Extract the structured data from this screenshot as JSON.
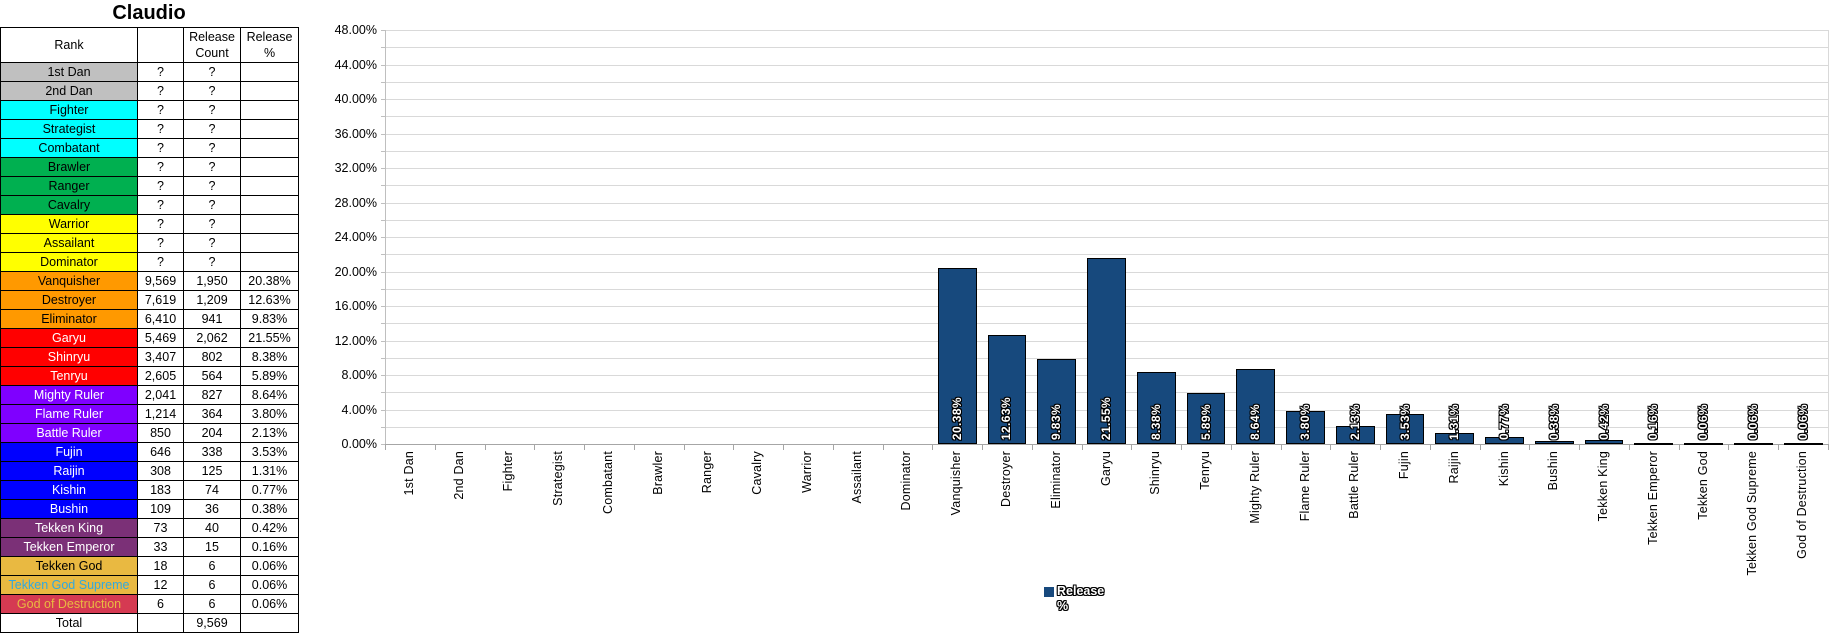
{
  "title": "Claudio",
  "table": {
    "columns": {
      "rank": "Rank",
      "count": "",
      "release_count": "Release Count",
      "release_pct": "Release %"
    },
    "rows": [
      {
        "name": "1st Dan",
        "bg": "#C0C0C0",
        "fg": "#000000",
        "count": "?",
        "release_count": "?",
        "release_pct": ""
      },
      {
        "name": "2nd Dan",
        "bg": "#C0C0C0",
        "fg": "#000000",
        "count": "?",
        "release_count": "?",
        "release_pct": ""
      },
      {
        "name": "Fighter",
        "bg": "#00FFFF",
        "fg": "#000000",
        "count": "?",
        "release_count": "?",
        "release_pct": ""
      },
      {
        "name": "Strategist",
        "bg": "#00FFFF",
        "fg": "#000000",
        "count": "?",
        "release_count": "?",
        "release_pct": ""
      },
      {
        "name": "Combatant",
        "bg": "#00FFFF",
        "fg": "#000000",
        "count": "?",
        "release_count": "?",
        "release_pct": ""
      },
      {
        "name": "Brawler",
        "bg": "#00B050",
        "fg": "#000000",
        "count": "?",
        "release_count": "?",
        "release_pct": ""
      },
      {
        "name": "Ranger",
        "bg": "#00B050",
        "fg": "#000000",
        "count": "?",
        "release_count": "?",
        "release_pct": ""
      },
      {
        "name": "Cavalry",
        "bg": "#00B050",
        "fg": "#000000",
        "count": "?",
        "release_count": "?",
        "release_pct": ""
      },
      {
        "name": "Warrior",
        "bg": "#FFFF00",
        "fg": "#000000",
        "count": "?",
        "release_count": "?",
        "release_pct": ""
      },
      {
        "name": "Assailant",
        "bg": "#FFFF00",
        "fg": "#000000",
        "count": "?",
        "release_count": "?",
        "release_pct": ""
      },
      {
        "name": "Dominator",
        "bg": "#FFFF00",
        "fg": "#000000",
        "count": "?",
        "release_count": "?",
        "release_pct": ""
      },
      {
        "name": "Vanquisher",
        "bg": "#FF9900",
        "fg": "#000000",
        "count": "9,569",
        "release_count": "1,950",
        "release_pct": "20.38%"
      },
      {
        "name": "Destroyer",
        "bg": "#FF9900",
        "fg": "#000000",
        "count": "7,619",
        "release_count": "1,209",
        "release_pct": "12.63%"
      },
      {
        "name": "Eliminator",
        "bg": "#FF9900",
        "fg": "#000000",
        "count": "6,410",
        "release_count": "941",
        "release_pct": "9.83%"
      },
      {
        "name": "Garyu",
        "bg": "#FF0000",
        "fg": "#FFFFFF",
        "count": "5,469",
        "release_count": "2,062",
        "release_pct": "21.55%"
      },
      {
        "name": "Shinryu",
        "bg": "#FF0000",
        "fg": "#FFFFFF",
        "count": "3,407",
        "release_count": "802",
        "release_pct": "8.38%"
      },
      {
        "name": "Tenryu",
        "bg": "#FF0000",
        "fg": "#FFFFFF",
        "count": "2,605",
        "release_count": "564",
        "release_pct": "5.89%"
      },
      {
        "name": "Mighty Ruler",
        "bg": "#7F00FF",
        "fg": "#FFFFFF",
        "count": "2,041",
        "release_count": "827",
        "release_pct": "8.64%"
      },
      {
        "name": "Flame Ruler",
        "bg": "#7F00FF",
        "fg": "#FFFFFF",
        "count": "1,214",
        "release_count": "364",
        "release_pct": "3.80%"
      },
      {
        "name": "Battle Ruler",
        "bg": "#7F00FF",
        "fg": "#FFFFFF",
        "count": "850",
        "release_count": "204",
        "release_pct": "2.13%"
      },
      {
        "name": "Fujin",
        "bg": "#0000FF",
        "fg": "#FFFFFF",
        "count": "646",
        "release_count": "338",
        "release_pct": "3.53%"
      },
      {
        "name": "Raijin",
        "bg": "#0000FF",
        "fg": "#FFFFFF",
        "count": "308",
        "release_count": "125",
        "release_pct": "1.31%"
      },
      {
        "name": "Kishin",
        "bg": "#0000FF",
        "fg": "#FFFFFF",
        "count": "183",
        "release_count": "74",
        "release_pct": "0.77%"
      },
      {
        "name": "Bushin",
        "bg": "#0000FF",
        "fg": "#FFFFFF",
        "count": "109",
        "release_count": "36",
        "release_pct": "0.38%"
      },
      {
        "name": "Tekken King",
        "bg": "#7B3077",
        "fg": "#FFFFFF",
        "count": "73",
        "release_count": "40",
        "release_pct": "0.42%"
      },
      {
        "name": "Tekken Emperor",
        "bg": "#7B3077",
        "fg": "#FFFFFF",
        "count": "33",
        "release_count": "15",
        "release_pct": "0.16%"
      },
      {
        "name": "Tekken God",
        "bg": "#E9B941",
        "fg": "#000000",
        "count": "18",
        "release_count": "6",
        "release_pct": "0.06%"
      },
      {
        "name": "Tekken God Supreme",
        "bg": "#E9B941",
        "fg": "#31A8DF",
        "count": "12",
        "release_count": "6",
        "release_pct": "0.06%"
      },
      {
        "name": "God of Destruction",
        "bg": "#D53A52",
        "fg": "#E9B941",
        "count": "6",
        "release_count": "6",
        "release_pct": "0.06%"
      }
    ],
    "total": {
      "label": "Total",
      "count": "",
      "release_count": "9,569",
      "release_pct": ""
    }
  },
  "chart_data": {
    "type": "bar",
    "title": "",
    "xlabel": "",
    "ylabel": "",
    "categories": [
      "1st Dan",
      "2nd Dan",
      "Fighter",
      "Strategist",
      "Combatant",
      "Brawler",
      "Ranger",
      "Cavalry",
      "Warrior",
      "Assailant",
      "Dominator",
      "Vanquisher",
      "Destroyer",
      "Eliminator",
      "Garyu",
      "Shinryu",
      "Tenryu",
      "Mighty Ruler",
      "Flame Ruler",
      "Battle Ruler",
      "Fujin",
      "Raijin",
      "Kishin",
      "Bushin",
      "Tekken King",
      "Tekken Emperor",
      "Tekken God",
      "Tekken God Supreme",
      "God of Destruction"
    ],
    "series": [
      {
        "name": "Release %",
        "values": [
          null,
          null,
          null,
          null,
          null,
          null,
          null,
          null,
          null,
          null,
          null,
          20.38,
          12.63,
          9.83,
          21.55,
          8.38,
          5.89,
          8.64,
          3.8,
          2.13,
          3.53,
          1.31,
          0.77,
          0.38,
          0.42,
          0.16,
          0.06,
          0.06,
          0.06
        ],
        "labels": [
          "",
          "",
          "",
          "",
          "",
          "",
          "",
          "",
          "",
          "",
          "",
          "20.38%",
          "12.63%",
          "9.83%",
          "21.55%",
          "8.38%",
          "5.89%",
          "8.64%",
          "3.80%",
          "2.13%",
          "3.53%",
          "1.31%",
          "0.77%",
          "0.38%",
          "0.42%",
          "0.16%",
          "0.06%",
          "0.06%",
          "0.06%"
        ]
      }
    ],
    "ylim": [
      0,
      48
    ],
    "yticks": [
      "0.00%",
      "4.00%",
      "8.00%",
      "12.00%",
      "16.00%",
      "20.00%",
      "24.00%",
      "28.00%",
      "32.00%",
      "36.00%",
      "40.00%",
      "44.00%",
      "48.00%"
    ],
    "ytick_label_step": 4,
    "ygrid_minor_step": 2,
    "grid": true,
    "legend": {
      "label": "Release %",
      "position": "bottom"
    },
    "bar_color": "#17497D",
    "bar_border_color": "#000000",
    "grid_color": "#D9D9D9",
    "axis_color": "#A6A6A6"
  }
}
